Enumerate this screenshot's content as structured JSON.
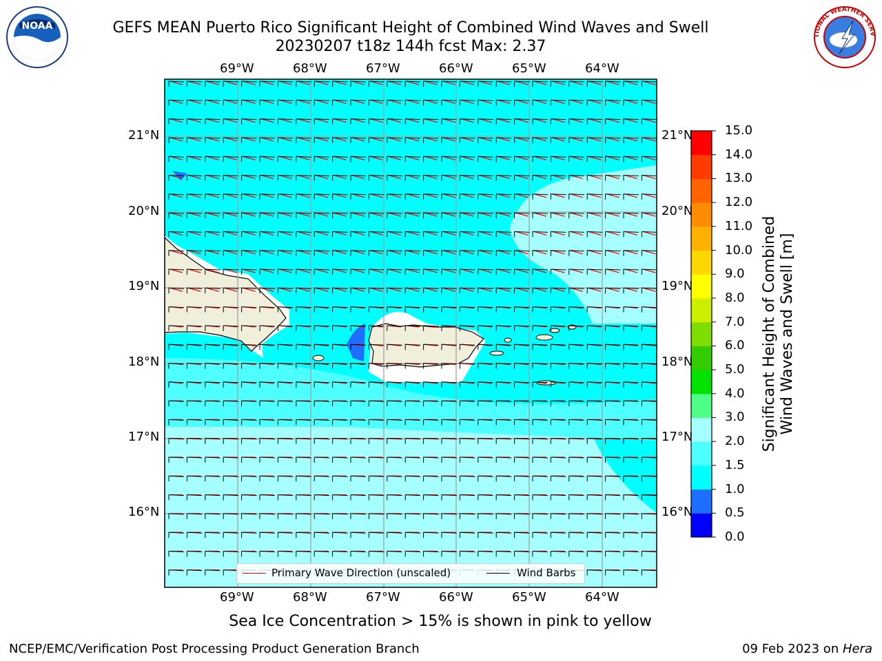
{
  "header": {
    "title_line1": "GEFS MEAN Puerto Rico Significant Height of Combined Wind Waves and Swell",
    "title_line2": "20230207 t18z 144h fcst   Max: 2.37"
  },
  "logos": {
    "left_text": "NOAA",
    "right_text": "NATIONAL WEATHER SERVICE"
  },
  "map": {
    "lon_labels": [
      "69°W",
      "68°W",
      "67°W",
      "66°W",
      "65°W",
      "64°W"
    ],
    "lat_labels": [
      "21°N",
      "20°N",
      "19°N",
      "18°N",
      "17°N",
      "16°N"
    ]
  },
  "legend": {
    "wave_direction": "Primary Wave Direction (unscaled)",
    "wind_barbs": "Wind Barbs"
  },
  "colorbar": {
    "title": "Significant Height of Combined\nWind Waves and Swell [m]",
    "ticks": [
      "0.0",
      "0.5",
      "1.0",
      "1.5",
      "2.0",
      "3.0",
      "4.0",
      "5.0",
      "6.0",
      "7.0",
      "8.0",
      "9.0",
      "10.0",
      "11.0",
      "12.0",
      "13.0",
      "14.0",
      "15.0"
    ],
    "colors": [
      "#0000ff",
      "#1e6eff",
      "#00ffff",
      "#4dffff",
      "#a6ffff",
      "#4dff85",
      "#00e300",
      "#33cc00",
      "#80dd00",
      "#ccee00",
      "#ffff00",
      "#ffd700",
      "#ffb000",
      "#ff8c00",
      "#ff6400",
      "#ff3c00",
      "#ff0000"
    ]
  },
  "note": "Sea Ice Concentration > 15% is shown in pink to yellow",
  "footer": {
    "left": "NCEP/EMC/Verification Post Processing Product Generation Branch",
    "right_prefix": "09 Feb 2023 on ",
    "right_italic": "Hera"
  }
}
